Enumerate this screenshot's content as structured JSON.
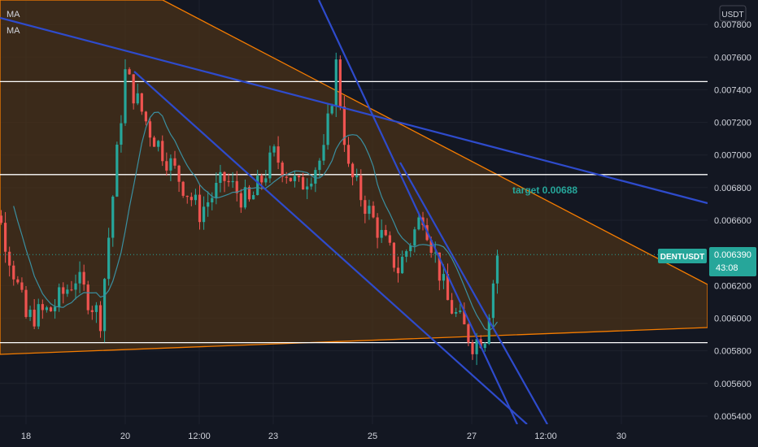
{
  "indicators": [
    "MA",
    "MA"
  ],
  "currency": "USDT",
  "price_tag": {
    "symbol": "DENTUSDT",
    "price": "0.006390",
    "countdown": "43:08",
    "color": "#26a69a"
  },
  "annotation": "target 0.00688",
  "colors": {
    "background": "#131722",
    "triangle_fill": "#4a3218",
    "triangle_edge": "#f57c00",
    "trendline": "#2e4bcc",
    "level": "#ffffff",
    "up": "#26a69a",
    "down": "#ef5350",
    "ma": "#3a8fa0"
  },
  "chart_data": {
    "type": "candlestick",
    "symbol": "DENTUSDT",
    "y_range": [
      0.00535,
      0.00795
    ],
    "y_ticks": [
      "0.007800",
      "0.007600",
      "0.007400",
      "0.007200",
      "0.007000",
      "0.006800",
      "0.006600",
      "0.006200",
      "0.006000",
      "0.005800",
      "0.005600",
      "0.005400"
    ],
    "x_ticks": [
      "18",
      "20",
      "12:00",
      "23",
      "25",
      "27",
      "12:00",
      "30"
    ],
    "horizontal_levels": [
      0.00745,
      0.00688,
      0.00585
    ],
    "last_price": 0.00639,
    "series_path": [
      {
        "x": "17",
        "y": 0.00715
      },
      {
        "x": "18",
        "y": 0.006
      },
      {
        "x": "18 12:00",
        "y": 0.00605
      },
      {
        "x": "19",
        "y": 0.00625
      },
      {
        "x": "19 12:00",
        "y": 0.006
      },
      {
        "x": "20",
        "y": 0.0075
      },
      {
        "x": "20 12:00",
        "y": 0.00715
      },
      {
        "x": "21",
        "y": 0.0069
      },
      {
        "x": "21 12:00",
        "y": 0.00665
      },
      {
        "x": "22",
        "y": 0.00685
      },
      {
        "x": "22 12:00",
        "y": 0.0067
      },
      {
        "x": "23",
        "y": 0.007
      },
      {
        "x": "23 12:00",
        "y": 0.0068
      },
      {
        "x": "24",
        "y": 0.007
      },
      {
        "x": "24 06:00",
        "y": 0.00755
      },
      {
        "x": "24 12:00",
        "y": 0.0069
      },
      {
        "x": "25",
        "y": 0.0066
      },
      {
        "x": "25 12:00",
        "y": 0.0063
      },
      {
        "x": "26",
        "y": 0.00665
      },
      {
        "x": "26 12:00",
        "y": 0.0061
      },
      {
        "x": "27",
        "y": 0.00585
      },
      {
        "x": "27 06:00",
        "y": 0.0059
      },
      {
        "x": "27 12:00",
        "y": 0.00639
      }
    ]
  }
}
